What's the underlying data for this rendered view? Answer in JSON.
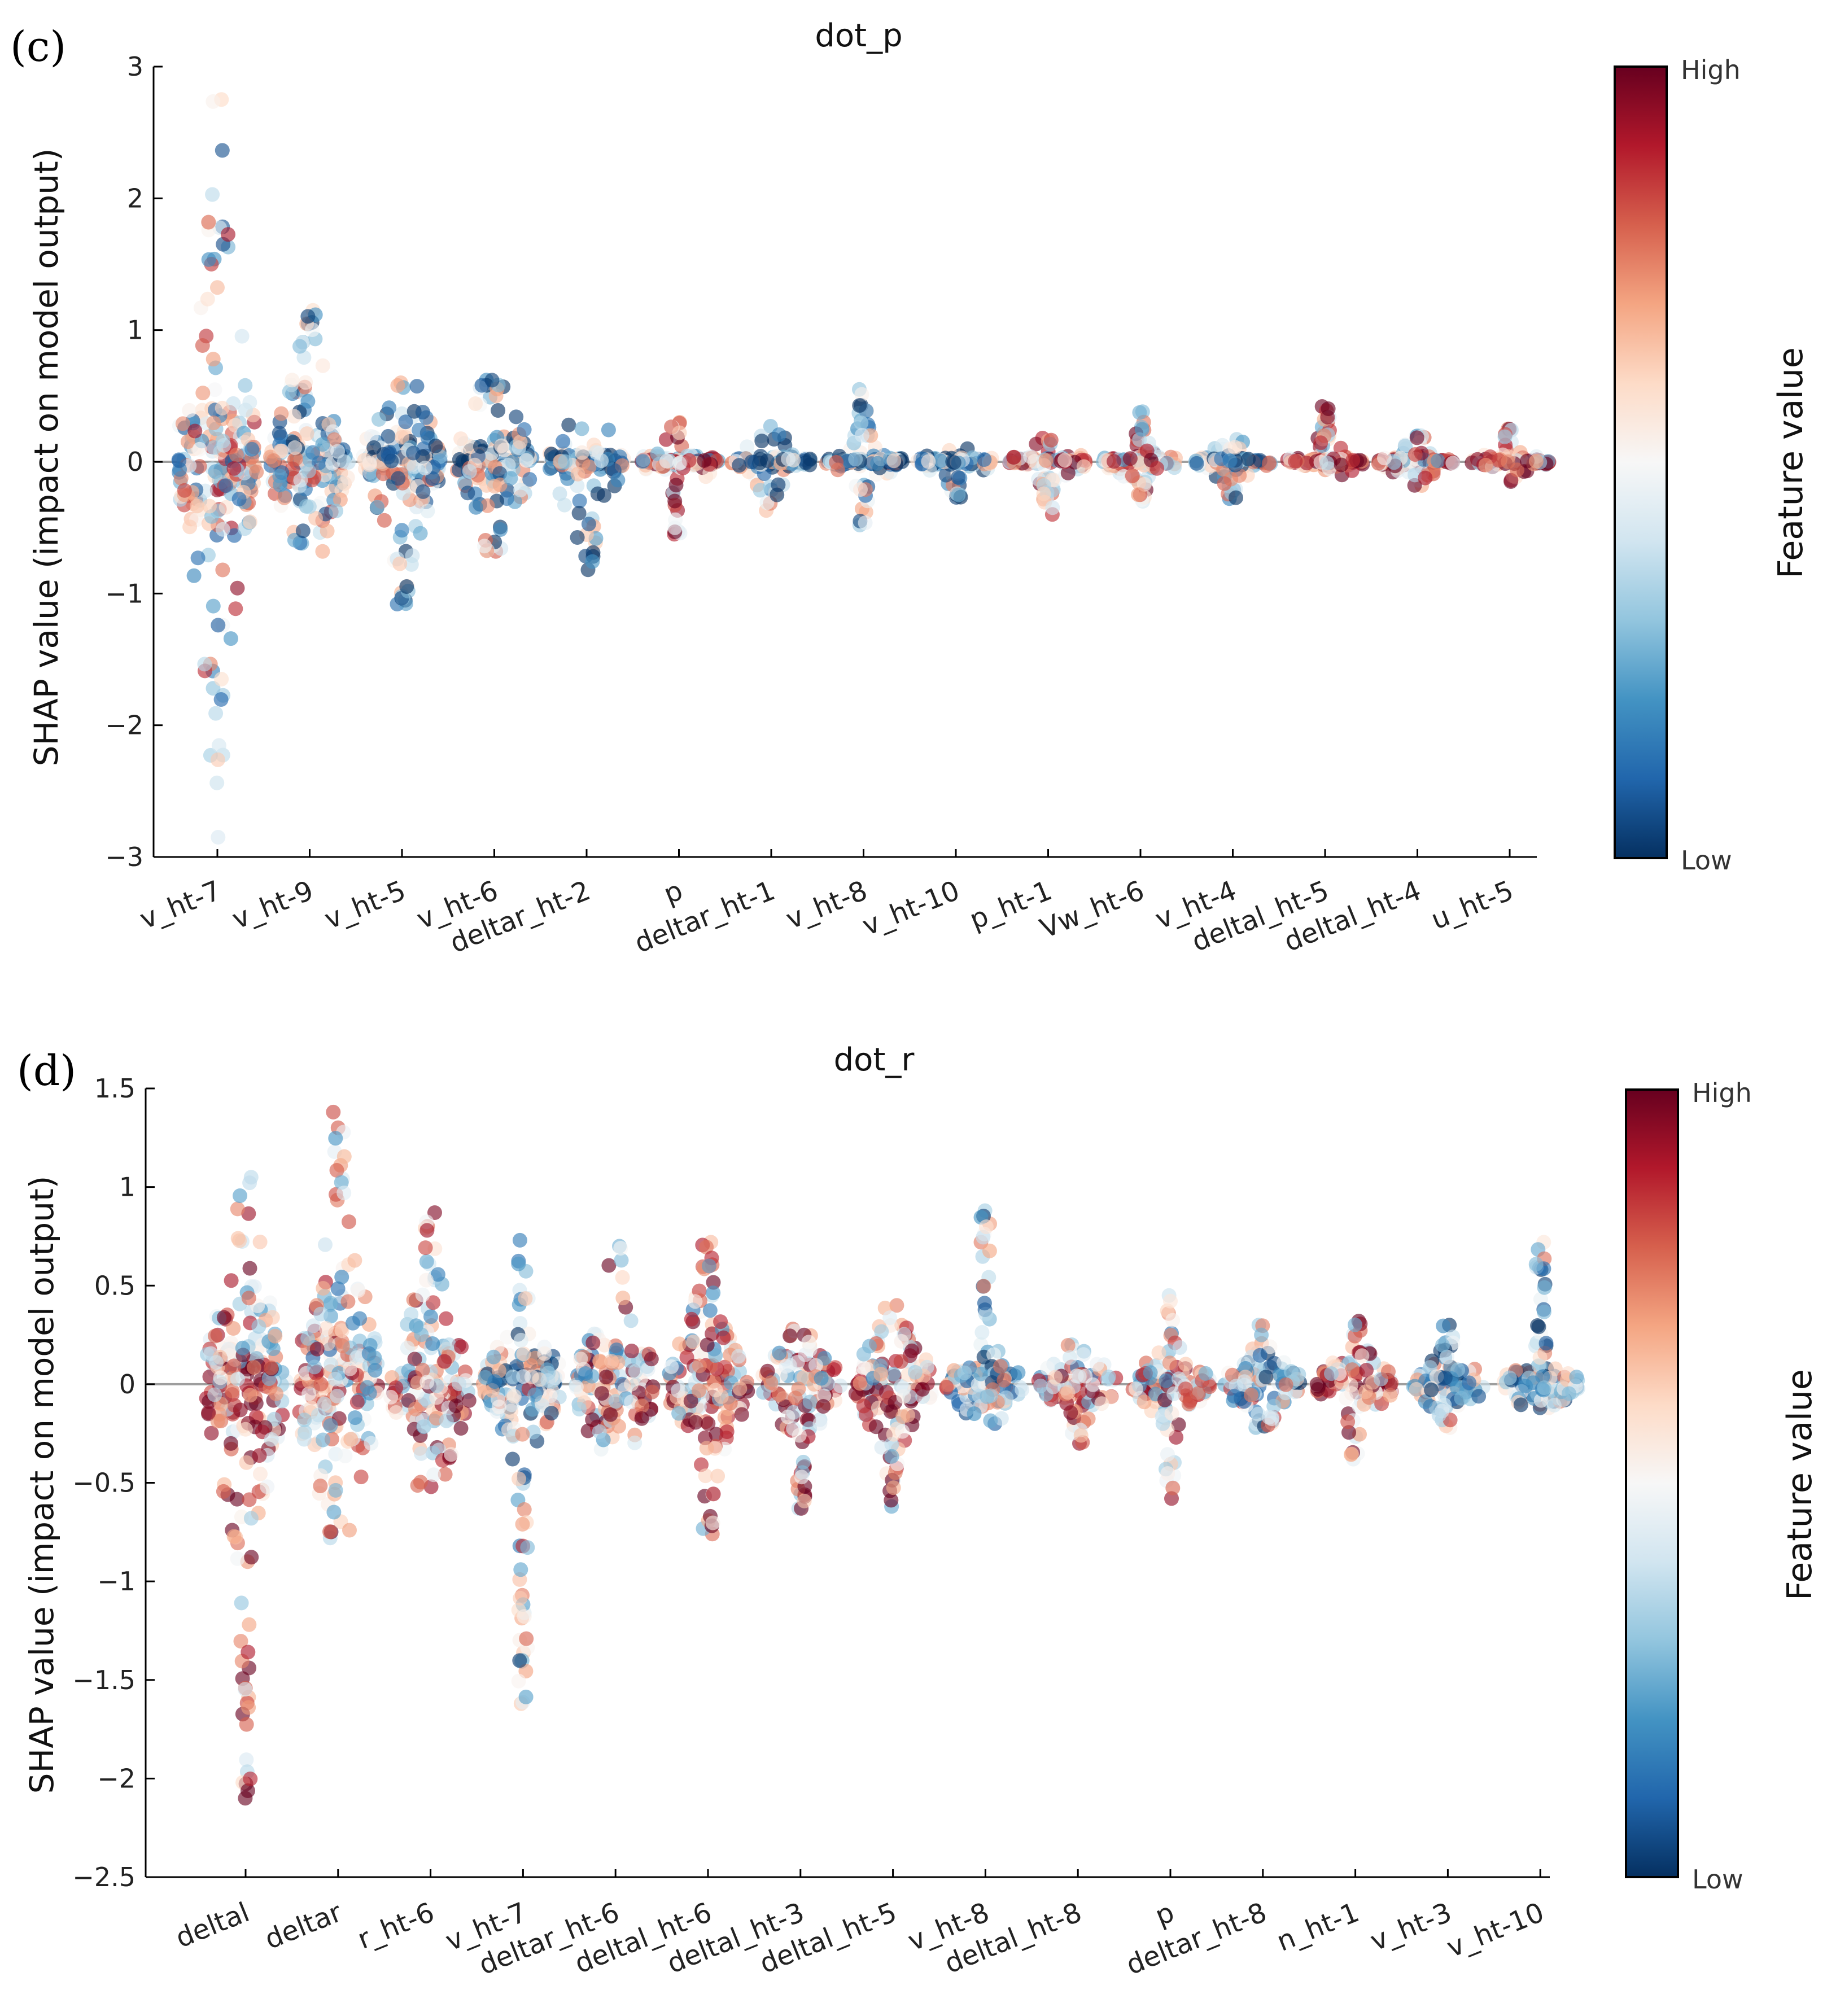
{
  "colors": {
    "high": "#67001f",
    "low": "#053061",
    "zero_line": "#9e9e9e",
    "colormap": [
      "#053061",
      "#2166ac",
      "#4393c3",
      "#92c5de",
      "#d1e5f0",
      "#f7f7f7",
      "#fddbc7",
      "#f4a582",
      "#d6604d",
      "#b2182b",
      "#67001f"
    ]
  },
  "chart_data": [
    {
      "type": "scatter",
      "subtype": "shap-beeswarm",
      "panel_label": "(c)",
      "title": "dot_p",
      "ylabel": "SHAP value (impact on model output)",
      "xlabel": "",
      "ylim": [
        -3,
        3
      ],
      "yticks": [
        3,
        2,
        1,
        0,
        -1,
        -2,
        -3
      ],
      "ytick_labels": [
        "3",
        "2",
        "1",
        "0",
        "−1",
        "−2",
        "−3"
      ],
      "colorbar": {
        "high_label": "High",
        "low_label": "Low",
        "title": "Feature value"
      },
      "categories": [
        "v_ht-7",
        "v_ht-9",
        "v_ht-5",
        "v_ht-6",
        "deltar_ht-2",
        "p",
        "deltar_ht-1",
        "v_ht-8",
        "v_ht-10",
        "p_ht-1",
        "Vw_ht-6",
        "v_ht-4",
        "deltal_ht-5",
        "deltal_ht-4",
        "u_ht-5"
      ],
      "features": [
        {
          "name": "v_ht-7",
          "min": -2.85,
          "max": 2.75,
          "core": 0.6,
          "spread": 0.95,
          "color_bias": 0
        },
        {
          "name": "v_ht-9",
          "min": -0.68,
          "max": 1.15,
          "core": 0.35,
          "spread": 0.45,
          "color_bias": -0.2
        },
        {
          "name": "v_ht-5",
          "min": -1.08,
          "max": 0.6,
          "core": 0.3,
          "spread": 0.4,
          "color_bias": -0.4
        },
        {
          "name": "v_ht-6",
          "min": -0.68,
          "max": 0.62,
          "core": 0.25,
          "spread": 0.35,
          "color_bias": -0.4
        },
        {
          "name": "deltar_ht-2",
          "min": -0.82,
          "max": 0.28,
          "core": 0.08,
          "spread": 0.3,
          "color_bias": -0.5
        },
        {
          "name": "p",
          "min": -0.55,
          "max": 0.3,
          "core": 0.06,
          "spread": 0.12,
          "color_bias": 0.4
        },
        {
          "name": "deltar_ht-1",
          "min": -0.37,
          "max": 0.27,
          "core": 0.05,
          "spread": 0.12,
          "color_bias": -0.5
        },
        {
          "name": "v_ht-8",
          "min": -0.48,
          "max": 0.55,
          "core": 0.04,
          "spread": 0.1,
          "color_bias": -0.4
        },
        {
          "name": "v_ht-10",
          "min": -0.27,
          "max": 0.1,
          "core": 0.04,
          "spread": 0.08,
          "color_bias": -0.6
        },
        {
          "name": "p_ht-1",
          "min": -0.4,
          "max": 0.18,
          "core": 0.04,
          "spread": 0.08,
          "color_bias": 0.3
        },
        {
          "name": "Vw_ht-6",
          "min": -0.3,
          "max": 0.38,
          "core": 0.05,
          "spread": 0.08,
          "color_bias": 0.4
        },
        {
          "name": "v_ht-4",
          "min": -0.28,
          "max": 0.17,
          "core": 0.04,
          "spread": 0.08,
          "color_bias": -0.4
        },
        {
          "name": "deltal_ht-5",
          "min": -0.1,
          "max": 0.42,
          "core": 0.04,
          "spread": 0.08,
          "color_bias": 0.6
        },
        {
          "name": "deltal_ht-4",
          "min": -0.18,
          "max": 0.2,
          "core": 0.04,
          "spread": 0.08,
          "color_bias": 0.4
        },
        {
          "name": "u_ht-5",
          "min": -0.15,
          "max": 0.25,
          "core": 0.03,
          "spread": 0.06,
          "color_bias": 0.5
        }
      ]
    },
    {
      "type": "scatter",
      "subtype": "shap-beeswarm",
      "panel_label": "(d)",
      "title": "dot_r",
      "ylabel": "SHAP value (impact on model output)",
      "xlabel": "",
      "ylim": [
        -2.5,
        1.5
      ],
      "yticks": [
        1.5,
        1,
        0.5,
        0,
        -0.5,
        -1,
        -1.5,
        -2,
        -2.5
      ],
      "ytick_labels": [
        "1.5",
        "1",
        "0.5",
        "0",
        "−0.5",
        "−1",
        "−1.5",
        "−2",
        "−2.5"
      ],
      "colorbar": {
        "high_label": "High",
        "low_label": "Low",
        "title": "Feature value"
      },
      "categories": [
        "deltal",
        "deltar",
        "r_ht-6",
        "v_ht-7",
        "deltar_ht-6",
        "deltal_ht-6",
        "deltal_ht-3",
        "deltal_ht-5",
        "v_ht-8",
        "deltal_ht-8",
        "p",
        "deltar_ht-8",
        "n_ht-1",
        "v_ht-3",
        "v_ht-10"
      ],
      "features": [
        {
          "name": "deltal",
          "min": -2.1,
          "max": 1.05,
          "core": 0.45,
          "spread": 0.45,
          "color_bias": 0.5
        },
        {
          "name": "deltar",
          "min": -0.78,
          "max": 1.38,
          "core": 0.45,
          "spread": 0.5,
          "color_bias": 0.1
        },
        {
          "name": "r_ht-6",
          "min": -0.52,
          "max": 0.87,
          "core": 0.3,
          "spread": 0.3,
          "color_bias": 0.3
        },
        {
          "name": "v_ht-7",
          "min": -1.62,
          "max": 0.73,
          "core": 0.2,
          "spread": 0.2,
          "color_bias": -0.2
        },
        {
          "name": "deltar_ht-6",
          "min": -0.33,
          "max": 0.7,
          "core": 0.25,
          "spread": 0.25,
          "color_bias": 0.2
        },
        {
          "name": "deltal_ht-6",
          "min": -0.76,
          "max": 0.72,
          "core": 0.3,
          "spread": 0.25,
          "color_bias": 0.3
        },
        {
          "name": "deltal_ht-3",
          "min": -0.63,
          "max": 0.28,
          "core": 0.22,
          "spread": 0.15,
          "color_bias": 0.4
        },
        {
          "name": "deltal_ht-5",
          "min": -0.62,
          "max": 0.4,
          "core": 0.25,
          "spread": 0.18,
          "color_bias": 0.3
        },
        {
          "name": "v_ht-8",
          "min": -0.2,
          "max": 0.88,
          "core": 0.15,
          "spread": 0.12,
          "color_bias": -0.2
        },
        {
          "name": "deltal_ht-8",
          "min": -0.3,
          "max": 0.2,
          "core": 0.15,
          "spread": 0.1,
          "color_bias": 0.3
        },
        {
          "name": "p",
          "min": -0.58,
          "max": 0.45,
          "core": 0.12,
          "spread": 0.1,
          "color_bias": 0.2
        },
        {
          "name": "deltar_ht-8",
          "min": -0.22,
          "max": 0.3,
          "core": 0.15,
          "spread": 0.1,
          "color_bias": -0.2
        },
        {
          "name": "n_ht-1",
          "min": -0.38,
          "max": 0.32,
          "core": 0.18,
          "spread": 0.1,
          "color_bias": 0.6
        },
        {
          "name": "v_ht-3",
          "min": -0.22,
          "max": 0.3,
          "core": 0.12,
          "spread": 0.08,
          "color_bias": -0.2
        },
        {
          "name": "v_ht-10",
          "min": -0.12,
          "max": 0.72,
          "core": 0.12,
          "spread": 0.08,
          "color_bias": -0.2
        }
      ]
    }
  ]
}
